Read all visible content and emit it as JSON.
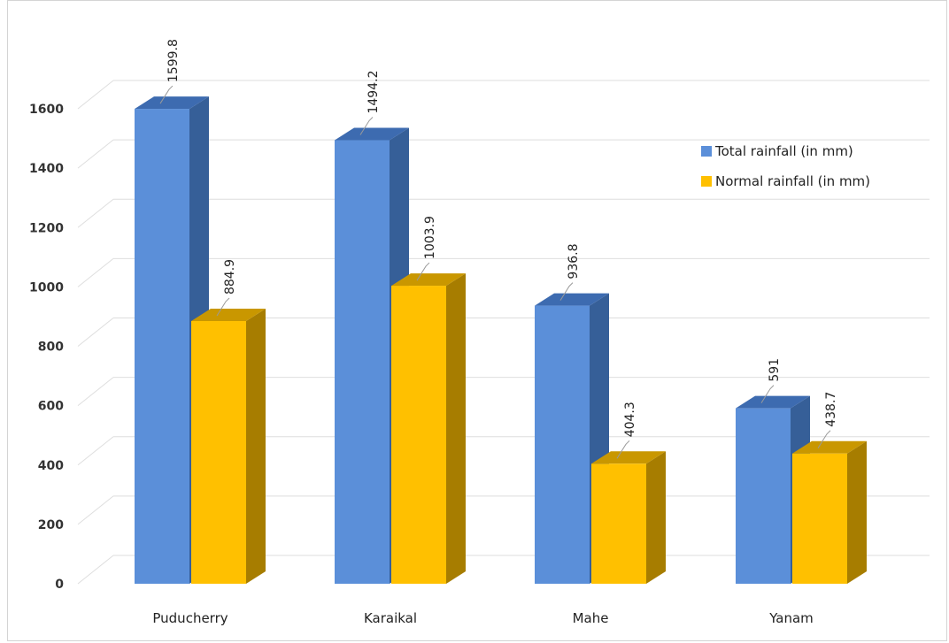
{
  "chart_data": {
    "type": "bar",
    "categories": [
      "Puducherry",
      "Karaikal",
      "Mahe",
      "Yanam"
    ],
    "series": [
      {
        "name": "Total rainfall (in mm)",
        "values": [
          1599.8,
          1494.2,
          936.8,
          591
        ],
        "labels": [
          "1599.8",
          "1494.2",
          "936.8",
          "591"
        ],
        "color": "#5b8fd9",
        "side_color": "#365f98",
        "top_color": "#3d6bb0"
      },
      {
        "name": "Normal rainfall (in mm)",
        "values": [
          884.9,
          1003.9,
          404.3,
          438.7
        ],
        "labels": [
          "884.9",
          "1003.9",
          "404.3",
          "438.7"
        ],
        "color": "#ffc000",
        "side_color": "#a77d00",
        "top_color": "#c99700"
      }
    ],
    "yticks": [
      "0",
      "200",
      "400",
      "600",
      "800",
      "1000",
      "1200",
      "1400",
      "1600"
    ],
    "ylim": [
      0,
      1600
    ],
    "grid": true,
    "style": "3d-column",
    "legend_position": "right",
    "title": "",
    "xlabel": "",
    "ylabel": ""
  }
}
